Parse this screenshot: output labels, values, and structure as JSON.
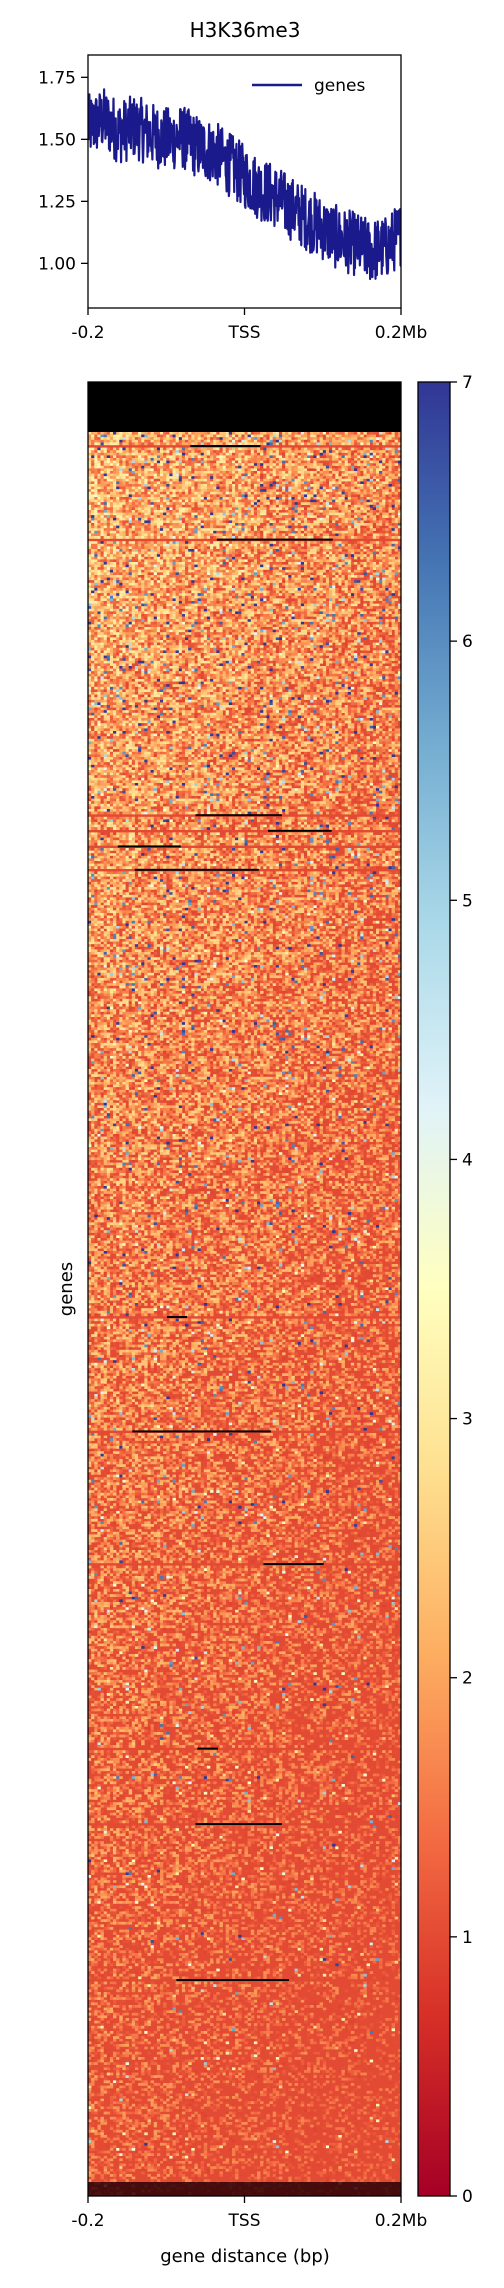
{
  "chart_data": [
    {
      "type": "line",
      "title": "H3K36me3",
      "xlabel": "",
      "ylabel": "",
      "x_ticks": [
        "-0.2",
        "TSS",
        "0.2Mb"
      ],
      "x_range": [
        -0.2,
        0.2
      ],
      "y_ticks": [
        "1.00",
        "1.25",
        "1.50",
        "1.75"
      ],
      "y_tick_values": [
        1.0,
        1.25,
        1.5,
        1.75
      ],
      "ylim": [
        0.82,
        1.84
      ],
      "legend_placement": "top-right",
      "grid": false,
      "series": [
        {
          "name": "genes",
          "color": "#1a1a8c",
          "x": [
            -0.2,
            -0.18,
            -0.16,
            -0.14,
            -0.12,
            -0.1,
            -0.08,
            -0.06,
            -0.04,
            -0.02,
            0.0,
            0.02,
            0.04,
            0.06,
            0.08,
            0.1,
            0.12,
            0.14,
            0.16,
            0.18,
            0.2
          ],
          "y": [
            1.55,
            1.58,
            1.53,
            1.55,
            1.52,
            1.5,
            1.51,
            1.47,
            1.45,
            1.4,
            1.35,
            1.3,
            1.27,
            1.22,
            1.18,
            1.14,
            1.1,
            1.08,
            1.05,
            1.06,
            1.12
          ]
        }
      ]
    },
    {
      "type": "heatmap",
      "xlabel": "gene distance (bp)",
      "ylabel": "genes",
      "x_ticks": [
        "-0.2",
        "TSS",
        "0.2Mb"
      ],
      "x_range": [
        -0.2,
        0.2
      ],
      "colorbar": {
        "ticks": [
          "0",
          "1",
          "2",
          "3",
          "4",
          "5",
          "6",
          "7"
        ],
        "tick_values": [
          0,
          1,
          2,
          3,
          4,
          5,
          6,
          7
        ],
        "range": [
          0,
          7
        ],
        "colormap": "RdYlBu",
        "colors": [
          "#a50026",
          "#d73027",
          "#f46d43",
          "#fdae61",
          "#fee090",
          "#ffffbf",
          "#e0f3f8",
          "#abd9e9",
          "#74add1",
          "#4575b4",
          "#313695"
        ]
      },
      "grid": false
    }
  ]
}
